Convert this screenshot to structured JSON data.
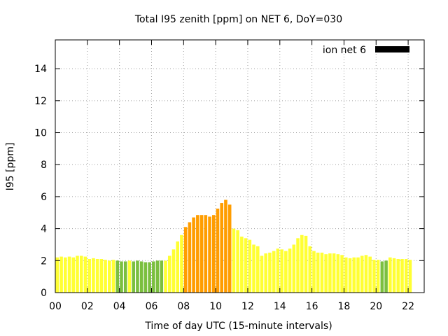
{
  "chart_data": {
    "type": "bar",
    "title": "Total I95 zenith [ppm] on NET 6, DoY=030",
    "xlabel": "Time of day UTC (15-minute intervals)",
    "ylabel": "I95 [ppm]",
    "xlim": [
      0,
      23.0
    ],
    "ylim": [
      0,
      15.8
    ],
    "xticks": [
      0,
      2,
      4,
      6,
      8,
      10,
      12,
      14,
      16,
      18,
      20,
      22
    ],
    "xtick_labels": [
      "00",
      "02",
      "04",
      "06",
      "08",
      "10",
      "12",
      "14",
      "16",
      "18",
      "20",
      "22"
    ],
    "yticks": [
      0,
      2,
      4,
      6,
      8,
      10,
      12,
      14
    ],
    "ytick_labels": [
      "0",
      "2",
      "4",
      "6",
      "8",
      "10",
      "12",
      "14"
    ],
    "grid": true,
    "legend": {
      "label": "ion net 6",
      "position": "top-right",
      "color": "#000000"
    },
    "interval_hours": 0.25,
    "series": [
      {
        "values": [
          2.2,
          2.25,
          2.2,
          2.25,
          2.2,
          2.3,
          2.3,
          2.25,
          2.1,
          2.15,
          2.1,
          2.1,
          2.05,
          2.0,
          2.05,
          2.0,
          1.95,
          1.95,
          2.0,
          1.95,
          2.0,
          1.95,
          1.9,
          1.9,
          1.95,
          2.0,
          2.0,
          2.0,
          2.3,
          2.7,
          3.2,
          3.6,
          4.1,
          4.4,
          4.7,
          4.85,
          4.85,
          4.85,
          4.75,
          4.85,
          5.25,
          5.6,
          5.8,
          5.5,
          4.0,
          3.9,
          3.5,
          3.4,
          3.3,
          3.0,
          2.9,
          2.3,
          2.45,
          2.5,
          2.6,
          2.75,
          2.7,
          2.6,
          2.75,
          3.0,
          3.4,
          3.6,
          3.55,
          2.9,
          2.6,
          2.5,
          2.5,
          2.4,
          2.45,
          2.45,
          2.4,
          2.35,
          2.2,
          2.15,
          2.2,
          2.2,
          2.3,
          2.35,
          2.25,
          2.05,
          2.05,
          1.95,
          2.0,
          2.2,
          2.15,
          2.1,
          2.1,
          2.1,
          2.05
        ],
        "colors": [
          "#ffff33",
          "#ffff33",
          "#ffff33",
          "#ffff33",
          "#ffff33",
          "#ffff33",
          "#ffff33",
          "#ffff33",
          "#ffff33",
          "#ffff33",
          "#ffff33",
          "#ffff33",
          "#ffff33",
          "#ffff33",
          "#ffff33",
          "#7bbf3f",
          "#7bbf3f",
          "#7bbf3f",
          "#ffff33",
          "#7bbf3f",
          "#7bbf3f",
          "#7bbf3f",
          "#7bbf3f",
          "#7bbf3f",
          "#7bbf3f",
          "#7bbf3f",
          "#7bbf3f",
          "#ffff33",
          "#ffff33",
          "#ffff33",
          "#ffff33",
          "#ffff33",
          "#ff9d00",
          "#ff9d00",
          "#ff9d00",
          "#ff9d00",
          "#ff9d00",
          "#ff9d00",
          "#ff9d00",
          "#ff9d00",
          "#ff9d00",
          "#ff9d00",
          "#ff9d00",
          "#ff9d00",
          "#ffff33",
          "#ffff33",
          "#ffff33",
          "#ffff33",
          "#ffff33",
          "#ffff33",
          "#ffff33",
          "#ffff33",
          "#ffff33",
          "#ffff33",
          "#ffff33",
          "#ffff33",
          "#ffff33",
          "#ffff33",
          "#ffff33",
          "#ffff33",
          "#ffff33",
          "#ffff33",
          "#ffff33",
          "#ffff33",
          "#ffff33",
          "#ffff33",
          "#ffff33",
          "#ffff33",
          "#ffff33",
          "#ffff33",
          "#ffff33",
          "#ffff33",
          "#ffff33",
          "#ffff33",
          "#ffff33",
          "#ffff33",
          "#ffff33",
          "#ffff33",
          "#ffff33",
          "#ffff33",
          "#ffff33",
          "#7bbf3f",
          "#7bbf3f",
          "#ffff33",
          "#ffff33",
          "#ffff33",
          "#ffff33",
          "#ffff33",
          "#ffff33"
        ]
      }
    ]
  }
}
